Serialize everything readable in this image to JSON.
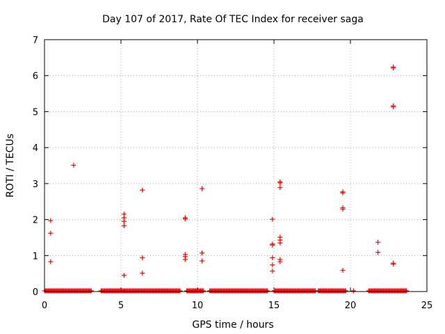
{
  "chart_data": {
    "type": "scatter",
    "title": "Day 107 of 2017, Rate Of TEC Index for receiver saga",
    "xlabel": "GPS time / hours",
    "ylabel": "ROTI / TECUs",
    "xlim": [
      0,
      25
    ],
    "ylim": [
      0,
      7
    ],
    "x_ticks": [
      0,
      5,
      10,
      15,
      20,
      25
    ],
    "y_ticks": [
      0,
      1,
      2,
      3,
      4,
      5,
      6,
      7
    ],
    "x_tick_labels": [
      "0",
      "5",
      "10",
      "15",
      "20",
      "25"
    ],
    "y_tick_labels": [
      "0",
      "1",
      "2",
      "3",
      "4",
      "5",
      "6",
      "7"
    ],
    "grid": true,
    "marker": "+",
    "color": "#ff0000",
    "baseline_segments": [
      {
        "x_start": 0.0,
        "x_end": 3.1,
        "y": 0.02
      },
      {
        "x_start": 3.7,
        "x_end": 8.9,
        "y": 0.02
      },
      {
        "x_start": 9.3,
        "x_end": 10.4,
        "y": 0.02
      },
      {
        "x_start": 10.8,
        "x_end": 14.6,
        "y": 0.02
      },
      {
        "x_start": 15.0,
        "x_end": 17.7,
        "y": 0.02
      },
      {
        "x_start": 17.9,
        "x_end": 19.7,
        "y": 0.02
      },
      {
        "x_start": 21.2,
        "x_end": 23.7,
        "y": 0.02
      }
    ],
    "points": [
      {
        "x": 0.4,
        "y": 1.97
      },
      {
        "x": 0.4,
        "y": 1.62
      },
      {
        "x": 0.4,
        "y": 0.83
      },
      {
        "x": 1.9,
        "y": 3.51
      },
      {
        "x": 5.2,
        "y": 2.15
      },
      {
        "x": 5.2,
        "y": 2.05
      },
      {
        "x": 5.2,
        "y": 1.95
      },
      {
        "x": 5.2,
        "y": 1.83
      },
      {
        "x": 5.2,
        "y": 0.45
      },
      {
        "x": 6.4,
        "y": 2.82
      },
      {
        "x": 6.4,
        "y": 0.94
      },
      {
        "x": 6.4,
        "y": 0.51
      },
      {
        "x": 9.2,
        "y": 2.05
      },
      {
        "x": 9.2,
        "y": 2.02
      },
      {
        "x": 9.2,
        "y": 1.03
      },
      {
        "x": 9.2,
        "y": 0.97
      },
      {
        "x": 9.2,
        "y": 0.89
      },
      {
        "x": 10.3,
        "y": 2.86
      },
      {
        "x": 10.3,
        "y": 1.07
      },
      {
        "x": 10.3,
        "y": 0.85
      },
      {
        "x": 14.9,
        "y": 2.01
      },
      {
        "x": 14.9,
        "y": 1.32
      },
      {
        "x": 14.9,
        "y": 1.29
      },
      {
        "x": 14.9,
        "y": 0.94
      },
      {
        "x": 14.9,
        "y": 0.74
      },
      {
        "x": 14.9,
        "y": 0.57
      },
      {
        "x": 15.4,
        "y": 3.05
      },
      {
        "x": 15.4,
        "y": 3.02
      },
      {
        "x": 15.4,
        "y": 2.89
      },
      {
        "x": 15.4,
        "y": 1.51
      },
      {
        "x": 15.4,
        "y": 1.43
      },
      {
        "x": 15.4,
        "y": 1.35
      },
      {
        "x": 15.4,
        "y": 0.89
      },
      {
        "x": 15.4,
        "y": 0.83
      },
      {
        "x": 19.5,
        "y": 2.77
      },
      {
        "x": 19.5,
        "y": 2.74
      },
      {
        "x": 19.5,
        "y": 2.33
      },
      {
        "x": 19.5,
        "y": 2.29
      },
      {
        "x": 19.5,
        "y": 0.59
      },
      {
        "x": 20.2,
        "y": 0.02
      },
      {
        "x": 21.8,
        "y": 1.37
      },
      {
        "x": 21.8,
        "y": 1.09
      },
      {
        "x": 22.8,
        "y": 6.24
      },
      {
        "x": 22.8,
        "y": 6.21
      },
      {
        "x": 22.8,
        "y": 5.16
      },
      {
        "x": 22.8,
        "y": 5.13
      },
      {
        "x": 22.8,
        "y": 0.79
      },
      {
        "x": 22.8,
        "y": 0.76
      }
    ]
  }
}
